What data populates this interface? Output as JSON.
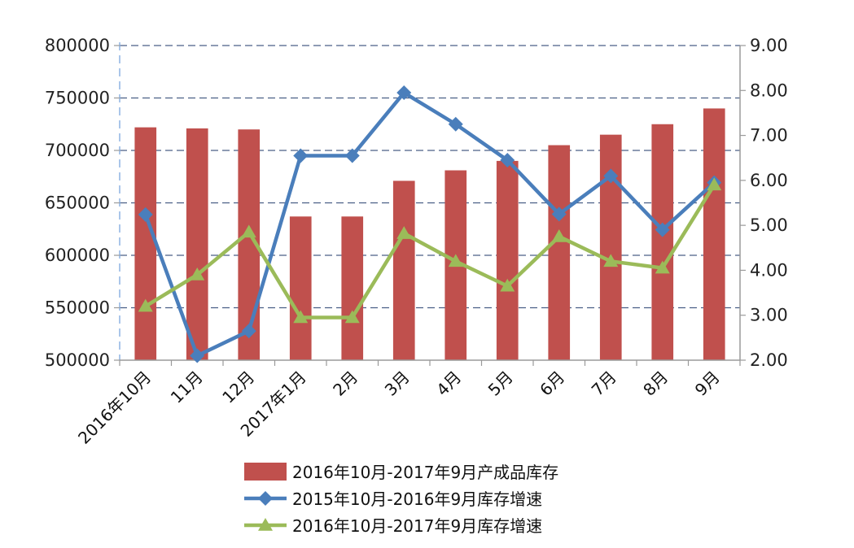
{
  "chart_data": {
    "type": "bar",
    "title": "",
    "xlabel": "",
    "ylabel": "",
    "categories": [
      "2016年10月",
      "11月",
      "12月",
      "2017年1月",
      "2月",
      "3月",
      "4月",
      "5月",
      "6月",
      "7月",
      "8月",
      "9月"
    ],
    "ylim": [
      500000,
      800000
    ],
    "y_ticks": [
      "500000",
      "550000",
      "600000",
      "650000",
      "700000",
      "750000",
      "800000"
    ],
    "y2lim": [
      2.0,
      9.0
    ],
    "y2_ticks": [
      "2.00",
      "3.00",
      "4.00",
      "5.00",
      "6.00",
      "7.00",
      "8.00",
      "9.00"
    ],
    "grid": "horizontal dashed",
    "legend_position": "bottom",
    "series": [
      {
        "name": "2016年10月-2017年9月产成品库存",
        "type": "bar",
        "axis": "left",
        "color": "#c0504d",
        "values": [
          722000,
          721000,
          720000,
          637000,
          637000,
          671000,
          681000,
          690000,
          705000,
          715000,
          725000,
          740000
        ]
      },
      {
        "name": "2015年10月-2016年9月库存增速",
        "type": "line",
        "axis": "right",
        "marker": "diamond",
        "color": "#4a7ebb",
        "values": [
          5.24,
          2.1,
          2.65,
          6.55,
          6.55,
          7.95,
          7.25,
          6.45,
          5.25,
          6.1,
          4.9,
          5.95
        ]
      },
      {
        "name": "2016年10月-2017年9月库存增速",
        "type": "line",
        "axis": "right",
        "marker": "triangle",
        "color": "#9bbb59",
        "values": [
          3.2,
          3.9,
          4.85,
          2.95,
          2.95,
          4.82,
          4.2,
          3.65,
          4.75,
          4.2,
          4.05,
          5.9
        ]
      }
    ]
  }
}
